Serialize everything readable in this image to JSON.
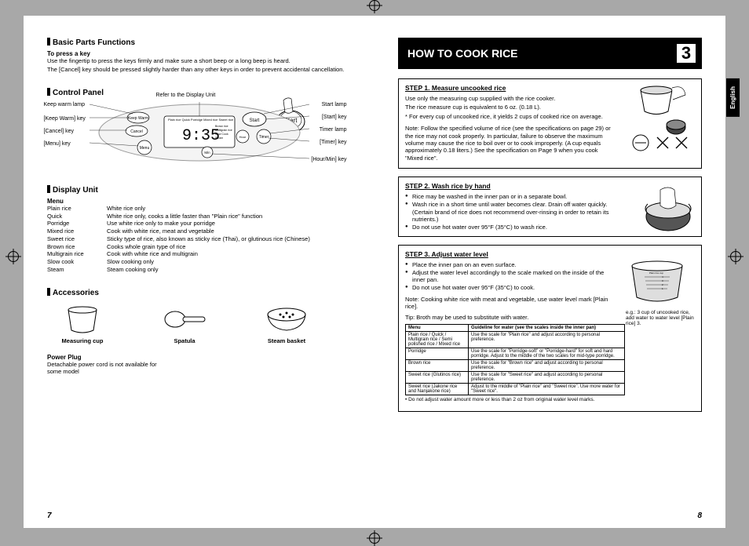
{
  "left": {
    "basic": {
      "heading": "Basic Parts Functions",
      "sub": "To press a key",
      "p1": "Use the fingertip to press the keys firmly and make sure a short beep or a long beep is heard.",
      "p2": "The [Cancel] key should be pressed slightly harder than any other keys in order to prevent accidental cancellation."
    },
    "control": {
      "heading": "Control Panel",
      "labels": {
        "keepwarm_lamp": "Keep warm lamp",
        "keepwarm_key": "[Keep Warm] key",
        "cancel_key": "[Cancel] key",
        "menu_key": "[Menu] key",
        "refer": "Refer to the Display Unit",
        "start_lamp": "Start lamp",
        "start_key": "[Start] key",
        "timer_lamp": "Timer lamp",
        "timer_key": "[Timer] key",
        "hourmin_key": "[Hour/Min] key"
      },
      "panel_caption": "Start"
    },
    "display": {
      "heading": "Display Unit",
      "menu_label": "Menu",
      "rows": [
        {
          "n": "Plain rice",
          "d": "White rice only"
        },
        {
          "n": "Quick",
          "d": "White rice only, cooks a little faster than \"Plain rice\" function"
        },
        {
          "n": "Porridge",
          "d": "Use white rice only to make your porridge"
        },
        {
          "n": "Mixed rice",
          "d": "Cook with white rice, meat and vegetable"
        },
        {
          "n": "Sweet rice",
          "d": "Sticky type of rice, also known as sticky rice (Thai), or glutinous rice (Chinese)"
        },
        {
          "n": "Brown rice",
          "d": "Cooks whole grain type of rice"
        },
        {
          "n": "Multigrain rice",
          "d": "Cook with white rice and multigrain"
        },
        {
          "n": "Slow cook",
          "d": "Slow cooking only"
        },
        {
          "n": "Steam",
          "d": "Steam cooking only"
        }
      ]
    },
    "acc": {
      "heading": "Accessories",
      "items": {
        "cup": "Measuring cup",
        "spatula": "Spatula",
        "basket": "Steam basket"
      },
      "plug_h": "Power Plug",
      "plug_t": "Detachable power cord is not available for some model"
    },
    "pagenum": "7"
  },
  "right": {
    "chapter": "HOW TO COOK RICE",
    "chapter_num": "3",
    "lang": "English",
    "step1": {
      "title": "STEP 1.  Measure uncooked rice",
      "p1": "Use only the measuring cup supplied with the rice cooker.",
      "p2": "The rice measure cup is equivalent to 6 oz. (0.18 L).",
      "p3": "* For every cup of uncooked rice, it yields 2 cups of cooked rice on average.",
      "note": "Note: Follow the specified volume of rice (see the specifications on page 29) or the rice may not cook properly. In particular, failure to observe the maximum volume may cause the rice to boil over or to cook improperly. (A cup equals approximately 0.18 liters.) See the specification on Page 9 when you cook \"Mixed rice\"."
    },
    "step2": {
      "title": "STEP 2.  Wash rice by hand",
      "b1": "Rice may be washed in the inner pan or in a separate bowl.",
      "b2": "Wash rice in a short time until water becomes clear. Drain off water quickly. (Certain brand of rice does not recommend over-rinsing in order to retain its nutrients.)",
      "b3": "Do not use hot water over 95°F (35°C) to wash rice."
    },
    "step3": {
      "title": "STEP 3.  Adjust water level",
      "b1": "Place the inner pan on an even surface.",
      "b2": "Adjust the water level accordingly to the scale marked on the inside of the inner pan.",
      "b3": "Do not use hot water over 95°F (35°C) to cook.",
      "note": "Note: Cooking white rice with meat and vegetable, use water level mark [Plain rice].",
      "tip": "Tip: Broth may be used to substitute with water.",
      "caption": "e.g.: 3 cup of uncooked rice, add water to water level [Plain rice] 3.",
      "table": {
        "h1": "Menu",
        "h2": "Guideline for water (see the scales inside the inner pan)",
        "rows": [
          {
            "m": "Plain rice / Quick / Multigrain rice / Semi polished rice / Mixed rice",
            "g": "Use the scale for \"Plain rice\" and adjust according to personal preference."
          },
          {
            "m": "Porridge",
            "g": "Use the scale for \"Porridge-soft\" or \"Porridge-hard\" for soft and hard porridge. Adjust to the middle of the two scales for mid-type porridge."
          },
          {
            "m": "Brown rice",
            "g": "Use the scale for \"Brown rice\" and adjust according to personal preference."
          },
          {
            "m": "Sweet rice (Glutinos rice)",
            "g": "Use the scale for \"Sweet rice\" and adjust according to personal preference."
          },
          {
            "m": "Sweet rice (Jakone rice and Nanjakone rice)",
            "g": "Adjust to the middle of \"Plain rice\" and \"Sweet rice\". Use more water for \"Sweet rice\"."
          }
        ],
        "foot": "• Do not adjust water amount more or less than 2 oz from original water level marks."
      }
    },
    "pagenum": "8"
  }
}
